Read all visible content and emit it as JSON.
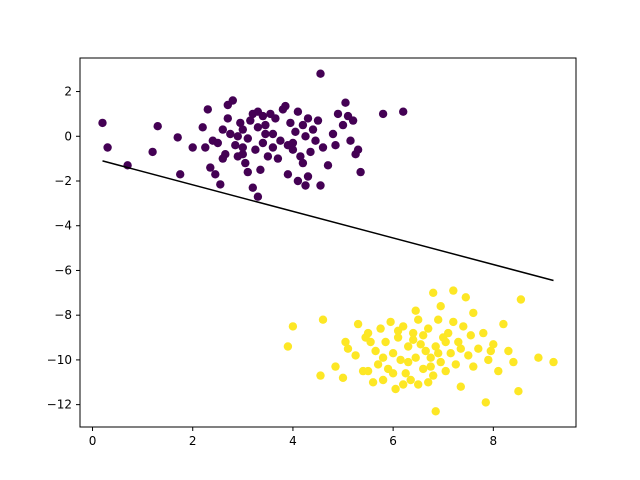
{
  "chart_data": {
    "type": "scatter",
    "title": "",
    "xlabel": "",
    "ylabel": "",
    "xlim": [
      -0.25,
      9.65
    ],
    "ylim": [
      -13.0,
      3.5
    ],
    "xticks": [
      0,
      2,
      4,
      6,
      8
    ],
    "yticks": [
      2,
      0,
      -2,
      -4,
      -6,
      -8,
      -10,
      -12
    ],
    "xtick_labels": [
      "0",
      "2",
      "4",
      "6",
      "8"
    ],
    "ytick_labels": [
      "2",
      "0",
      "−2",
      "−4",
      "−6",
      "−8",
      "−10",
      "−12"
    ],
    "grid": false,
    "legend": "none",
    "series": [
      {
        "color": "#440154",
        "points": [
          [
            0.2,
            0.6
          ],
          [
            0.3,
            -0.5
          ],
          [
            0.7,
            -1.3
          ],
          [
            1.2,
            -0.7
          ],
          [
            1.3,
            0.45
          ],
          [
            1.7,
            -0.05
          ],
          [
            1.75,
            -1.7
          ],
          [
            2.2,
            0.4
          ],
          [
            2.25,
            -0.5
          ],
          [
            2.3,
            1.2
          ],
          [
            2.35,
            -1.4
          ],
          [
            2.4,
            -0.2
          ],
          [
            2.45,
            -1.7
          ],
          [
            2.5,
            -0.3
          ],
          [
            2.55,
            -2.15
          ],
          [
            2.6,
            0.3
          ],
          [
            2.65,
            -0.8
          ],
          [
            2.7,
            1.4
          ],
          [
            2.7,
            0.8
          ],
          [
            2.75,
            0.1
          ],
          [
            2.8,
            1.6
          ],
          [
            2.85,
            -0.4
          ],
          [
            2.9,
            -0.9
          ],
          [
            2.95,
            0.6
          ],
          [
            3.0,
            -0.5
          ],
          [
            3.0,
            0.3
          ],
          [
            3.05,
            -1.2
          ],
          [
            3.1,
            -1.6
          ],
          [
            3.1,
            -0.1
          ],
          [
            3.15,
            0.7
          ],
          [
            3.2,
            -2.3
          ],
          [
            3.2,
            1.0
          ],
          [
            3.25,
            -0.6
          ],
          [
            3.3,
            0.4
          ],
          [
            3.3,
            1.1
          ],
          [
            3.35,
            -1.5
          ],
          [
            3.4,
            -0.3
          ],
          [
            3.4,
            0.9
          ],
          [
            3.45,
            0.5
          ],
          [
            3.5,
            -0.9
          ],
          [
            3.55,
            1.0
          ],
          [
            3.6,
            0.1
          ],
          [
            3.65,
            0.8
          ],
          [
            3.7,
            -1.0
          ],
          [
            3.75,
            -0.2
          ],
          [
            3.8,
            1.2
          ],
          [
            3.85,
            1.35
          ],
          [
            3.9,
            -0.4
          ],
          [
            3.9,
            -1.7
          ],
          [
            3.95,
            0.6
          ],
          [
            4.0,
            -0.6
          ],
          [
            4.05,
            0.2
          ],
          [
            4.1,
            -2.0
          ],
          [
            4.1,
            1.1
          ],
          [
            4.15,
            -0.9
          ],
          [
            4.2,
            0.5
          ],
          [
            4.2,
            -1.2
          ],
          [
            4.25,
            0.0
          ],
          [
            4.3,
            -1.8
          ],
          [
            4.3,
            0.8
          ],
          [
            4.35,
            -0.7
          ],
          [
            4.4,
            0.3
          ],
          [
            4.45,
            -0.2
          ],
          [
            4.5,
            0.7
          ],
          [
            4.55,
            2.8
          ],
          [
            4.55,
            -2.2
          ],
          [
            4.6,
            -0.5
          ],
          [
            4.7,
            -1.3
          ],
          [
            4.8,
            0.1
          ],
          [
            4.85,
            -0.4
          ],
          [
            4.9,
            1.0
          ],
          [
            5.0,
            0.5
          ],
          [
            5.05,
            1.5
          ],
          [
            5.1,
            0.9
          ],
          [
            5.15,
            -0.2
          ],
          [
            5.2,
            0.7
          ],
          [
            5.25,
            -0.8
          ],
          [
            5.3,
            -0.6
          ],
          [
            5.35,
            -1.6
          ],
          [
            5.8,
            1.0
          ],
          [
            6.2,
            1.1
          ],
          [
            3.3,
            -2.7
          ],
          [
            2.0,
            -0.5
          ],
          [
            2.9,
            0.0
          ],
          [
            3.6,
            -0.5
          ],
          [
            4.0,
            -0.3
          ],
          [
            4.25,
            -2.2
          ],
          [
            2.6,
            -1.0
          ],
          [
            3.0,
            -0.8
          ],
          [
            3.45,
            0.1
          ]
        ]
      },
      {
        "color": "#fde725",
        "points": [
          [
            3.9,
            -9.4
          ],
          [
            4.0,
            -8.5
          ],
          [
            4.55,
            -10.7
          ],
          [
            4.6,
            -8.2
          ],
          [
            4.85,
            -10.3
          ],
          [
            5.0,
            -10.8
          ],
          [
            5.05,
            -9.2
          ],
          [
            5.1,
            -9.5
          ],
          [
            5.25,
            -9.8
          ],
          [
            5.3,
            -8.4
          ],
          [
            5.4,
            -10.5
          ],
          [
            5.45,
            -9.0
          ],
          [
            5.5,
            -8.8
          ],
          [
            5.6,
            -11.0
          ],
          [
            5.65,
            -9.6
          ],
          [
            5.7,
            -10.2
          ],
          [
            5.75,
            -8.6
          ],
          [
            5.8,
            -10.9
          ],
          [
            5.85,
            -9.2
          ],
          [
            5.9,
            -10.4
          ],
          [
            5.95,
            -8.3
          ],
          [
            6.0,
            -9.7
          ],
          [
            6.05,
            -11.3
          ],
          [
            6.1,
            -9.0
          ],
          [
            6.15,
            -10.0
          ],
          [
            6.2,
            -8.5
          ],
          [
            6.25,
            -10.6
          ],
          [
            6.3,
            -9.4
          ],
          [
            6.35,
            -10.9
          ],
          [
            6.4,
            -8.8
          ],
          [
            6.45,
            -9.9
          ],
          [
            6.5,
            -8.2
          ],
          [
            6.5,
            -11.1
          ],
          [
            6.55,
            -9.3
          ],
          [
            6.6,
            -10.4
          ],
          [
            6.65,
            -9.6
          ],
          [
            6.7,
            -11.0
          ],
          [
            6.7,
            -8.6
          ],
          [
            6.75,
            -9.9
          ],
          [
            6.8,
            -7.0
          ],
          [
            6.8,
            -10.7
          ],
          [
            6.85,
            -12.3
          ],
          [
            6.85,
            -9.4
          ],
          [
            6.9,
            -8.2
          ],
          [
            6.95,
            -10.1
          ],
          [
            7.0,
            -9.0
          ],
          [
            7.05,
            -10.5
          ],
          [
            7.1,
            -8.8
          ],
          [
            7.15,
            -9.7
          ],
          [
            7.2,
            -6.9
          ],
          [
            7.2,
            -8.3
          ],
          [
            7.25,
            -10.2
          ],
          [
            7.3,
            -9.2
          ],
          [
            7.35,
            -11.2
          ],
          [
            7.4,
            -8.5
          ],
          [
            7.45,
            -7.2
          ],
          [
            7.5,
            -9.8
          ],
          [
            7.55,
            -8.9
          ],
          [
            7.6,
            -10.3
          ],
          [
            7.7,
            -9.5
          ],
          [
            7.8,
            -8.8
          ],
          [
            7.85,
            -11.9
          ],
          [
            7.9,
            -10.0
          ],
          [
            8.0,
            -9.3
          ],
          [
            8.1,
            -10.5
          ],
          [
            8.2,
            -8.4
          ],
          [
            8.3,
            -9.6
          ],
          [
            8.4,
            -10.1
          ],
          [
            8.55,
            -7.3
          ],
          [
            8.5,
            -11.4
          ],
          [
            8.9,
            -9.9
          ],
          [
            9.2,
            -10.1
          ],
          [
            6.1,
            -8.7
          ],
          [
            6.4,
            -9.1
          ],
          [
            6.6,
            -8.9
          ],
          [
            5.8,
            -9.9
          ],
          [
            6.9,
            -9.7
          ],
          [
            7.05,
            -9.2
          ],
          [
            6.3,
            -10.1
          ],
          [
            6.75,
            -10.3
          ],
          [
            7.35,
            -9.5
          ],
          [
            5.5,
            -10.5
          ],
          [
            6.0,
            -10.6
          ],
          [
            7.6,
            -7.9
          ],
          [
            6.45,
            -7.8
          ],
          [
            6.95,
            -7.6
          ],
          [
            5.55,
            -9.2
          ],
          [
            7.95,
            -9.6
          ],
          [
            6.2,
            -11.1
          ]
        ]
      }
    ],
    "line": {
      "color": "#000000",
      "points": [
        [
          0.2,
          -1.1
        ],
        [
          9.2,
          -6.45
        ]
      ]
    }
  }
}
